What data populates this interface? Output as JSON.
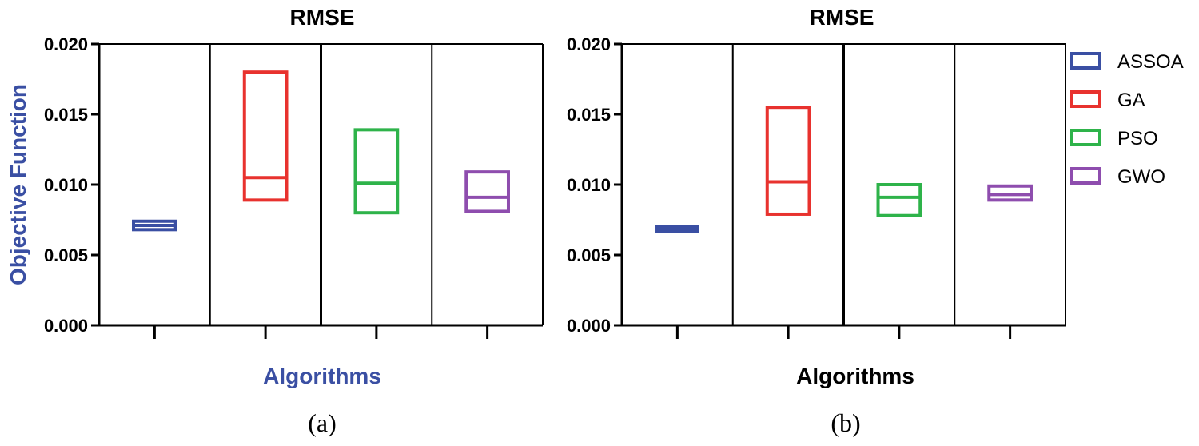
{
  "colors": {
    "ASSOA": "#3a4fa3",
    "GA": "#e8322e",
    "PSO": "#2eb34a",
    "GWO": "#8e4dae",
    "axis_label_accent": "#3a4fa3"
  },
  "legend": [
    {
      "name": "ASSOA",
      "color": "#3a4fa3"
    },
    {
      "name": "GA",
      "color": "#e8322e"
    },
    {
      "name": "PSO",
      "color": "#2eb34a"
    },
    {
      "name": "GWO",
      "color": "#8e4dae"
    }
  ],
  "chart_data": [
    {
      "type": "box",
      "panel_label": "(a)",
      "title": "RMSE",
      "xlabel": "Algorithms",
      "ylabel": "Objective Function",
      "ylim": [
        0,
        0.02
      ],
      "yticks": [
        "0.000",
        "0.005",
        "0.010",
        "0.015",
        "0.020"
      ],
      "categories": [
        "ASSOA",
        "GA",
        "PSO",
        "GWO"
      ],
      "series": [
        {
          "name": "ASSOA",
          "low": 0.0068,
          "median": 0.0071,
          "high": 0.0074
        },
        {
          "name": "GA",
          "low": 0.0089,
          "median": 0.0105,
          "high": 0.018
        },
        {
          "name": "PSO",
          "low": 0.008,
          "median": 0.0101,
          "high": 0.0139
        },
        {
          "name": "GWO",
          "low": 0.0081,
          "median": 0.0091,
          "high": 0.0109
        }
      ],
      "xlabel_color": "#3a4fa3",
      "ylabel_color": "#3a4fa3"
    },
    {
      "type": "box",
      "panel_label": "(b)",
      "title": "RMSE",
      "xlabel": "Algorithms",
      "ylabel": "",
      "ylim": [
        0,
        0.02
      ],
      "yticks": [
        "0.000",
        "0.005",
        "0.010",
        "0.015",
        "0.020"
      ],
      "categories": [
        "ASSOA",
        "GA",
        "PSO",
        "GWO"
      ],
      "series": [
        {
          "name": "ASSOA",
          "low": 0.0066,
          "median": 0.0069,
          "high": 0.0071
        },
        {
          "name": "GA",
          "low": 0.0079,
          "median": 0.0102,
          "high": 0.0155
        },
        {
          "name": "PSO",
          "low": 0.0078,
          "median": 0.0091,
          "high": 0.01
        },
        {
          "name": "GWO",
          "low": 0.0089,
          "median": 0.0093,
          "high": 0.0099
        }
      ],
      "xlabel_color": "#000000",
      "ylabel_color": "#000000"
    }
  ]
}
